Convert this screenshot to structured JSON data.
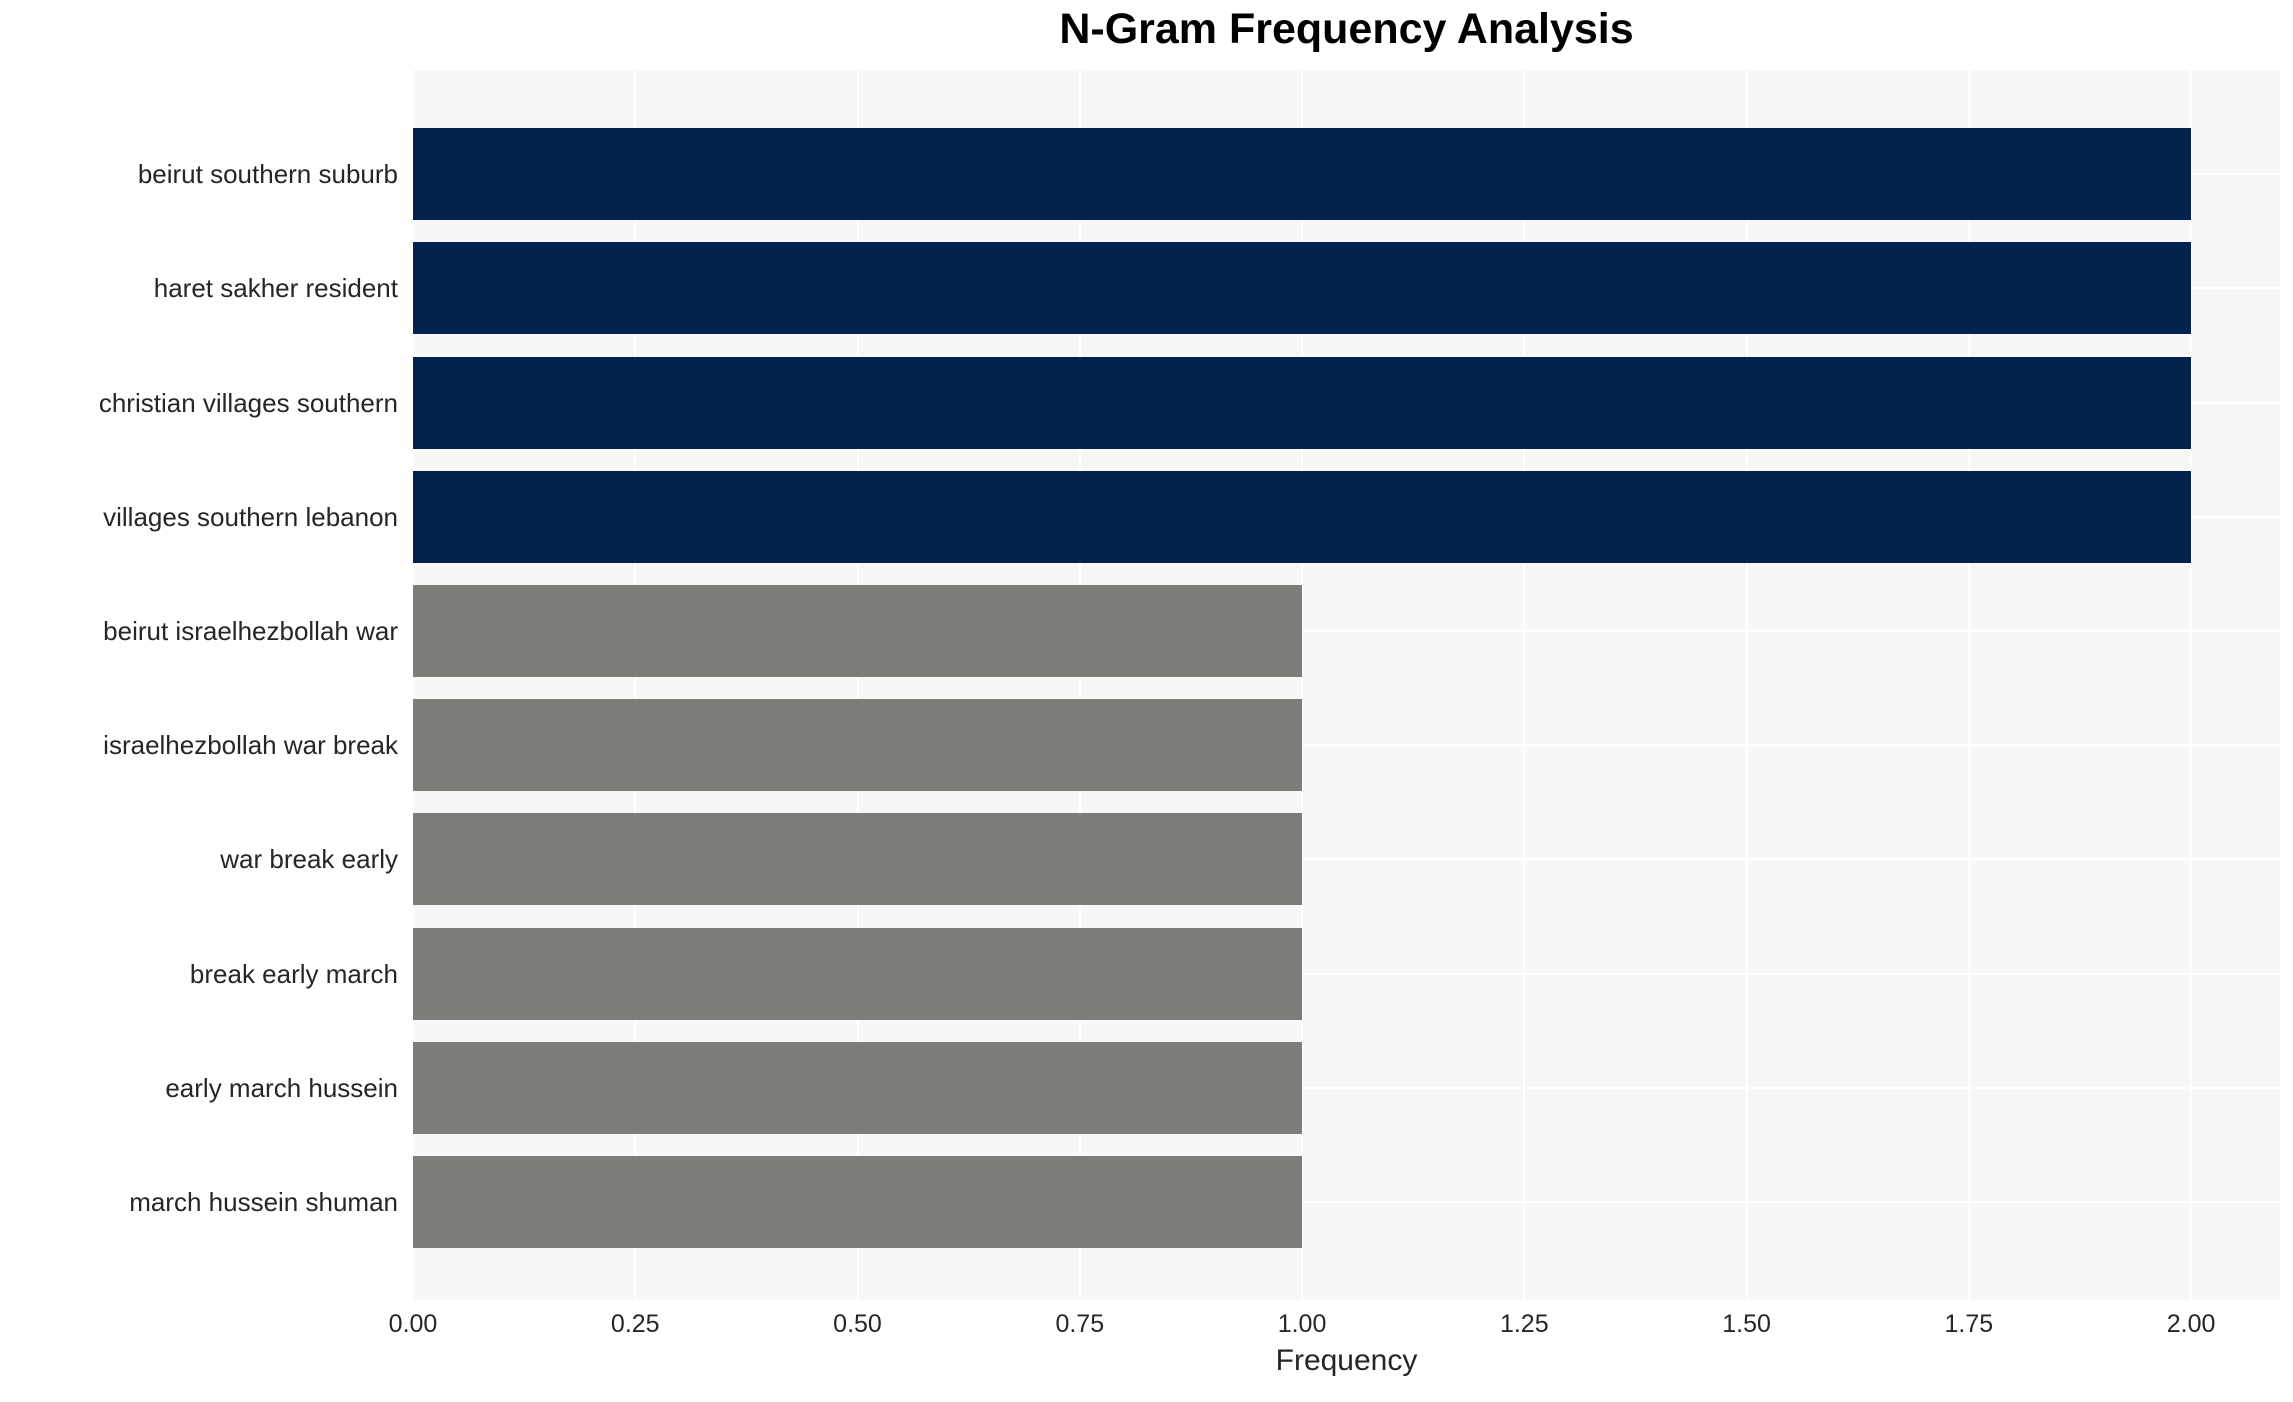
{
  "chart_data": {
    "type": "bar",
    "orientation": "horizontal",
    "title": "N-Gram Frequency Analysis",
    "xlabel": "Frequency",
    "ylabel": "",
    "categories": [
      "beirut southern suburb",
      "haret sakher resident",
      "christian villages southern",
      "villages southern lebanon",
      "beirut israelhezbollah war",
      "israelhezbollah war break",
      "war break early",
      "break early march",
      "early march hussein",
      "march hussein shuman"
    ],
    "values": [
      2,
      2,
      2,
      2,
      1,
      1,
      1,
      1,
      1,
      1
    ],
    "bar_colors": [
      "#02234e",
      "#02234e",
      "#02234e",
      "#02234e",
      "#7c7c78",
      "#7c7c78",
      "#7c7c78",
      "#7c7c78",
      "#7c7c78",
      "#7c7c78"
    ],
    "xlim": [
      0,
      2.1
    ],
    "xticks": [
      "0.00",
      "0.25",
      "0.50",
      "0.75",
      "1.00",
      "1.25",
      "1.50",
      "1.75",
      "2.00"
    ],
    "xtick_values": [
      0,
      0.25,
      0.5,
      0.75,
      1.0,
      1.25,
      1.5,
      1.75,
      2.0
    ],
    "grid": true,
    "legend": false,
    "colors": {
      "bar_high": "#02234e",
      "bar_low": "#7c7c78",
      "plot_background": "#f7f7f7",
      "grid_line": "#ffffff",
      "figure_background": "#ffffff",
      "title_text": "#000000",
      "label_text": "#262626"
    }
  }
}
